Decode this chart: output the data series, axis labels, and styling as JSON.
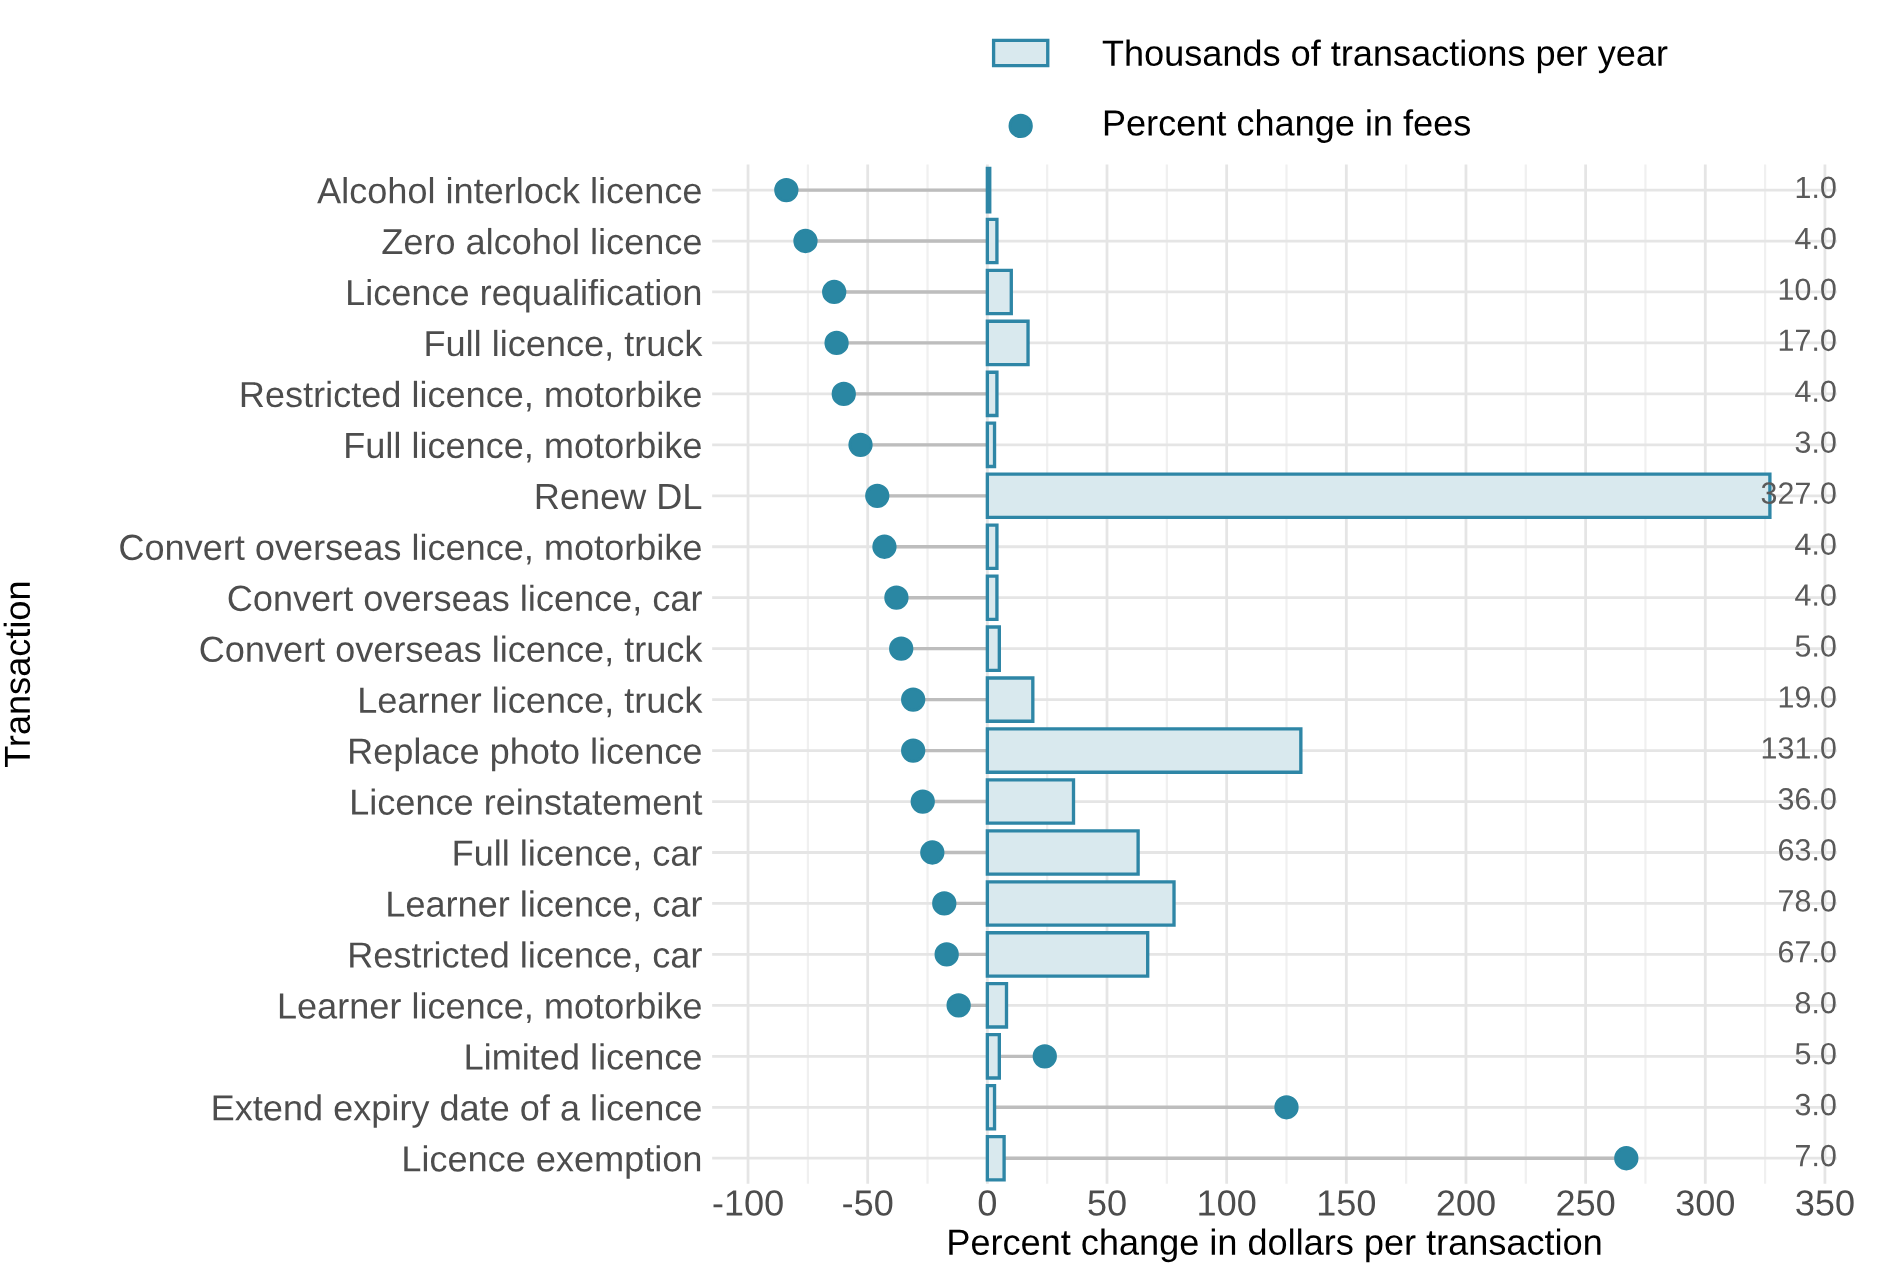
{
  "chart_data": {
    "type": "bar",
    "orientation": "horizontal",
    "xlabel": "Percent change in dollars per transaction",
    "ylabel": "Transaction",
    "categories": [
      "Alcohol interlock licence",
      "Zero alcohol licence",
      "Licence requalification",
      "Full licence, truck",
      "Restricted licence, motorbike",
      "Full licence, motorbike",
      "Renew DL",
      "Convert overseas licence, motorbike",
      "Convert overseas licence, car",
      "Convert overseas licence, truck",
      "Learner licence, truck",
      "Replace photo licence",
      "Licence reinstatement",
      "Full licence, car",
      "Learner licence, car",
      "Restricted licence, car",
      "Learner licence, motorbike",
      "Limited licence",
      "Extend expiry date of a licence",
      "Licence exemption"
    ],
    "series": [
      {
        "name": "Thousands of transactions per year",
        "color": "#2e86a6",
        "values": [
          1,
          4,
          10,
          17,
          4,
          3,
          327,
          4,
          4,
          5,
          19,
          131,
          36,
          63,
          78,
          67,
          8,
          5,
          3,
          7
        ],
        "value_labels": [
          "1.0",
          "4.0",
          "10.0",
          "17.0",
          "4.0",
          "3.0",
          "327.0",
          "4.0",
          "4.0",
          "5.0",
          "19.0",
          "131.0",
          "36.0",
          "63.0",
          "78.0",
          "67.0",
          "8.0",
          "5.0",
          "3.0",
          "7.0"
        ]
      },
      {
        "name": "Percent change in fees",
        "type": "lollipop",
        "color": "#2a87a3",
        "values": [
          -84,
          -76,
          -64,
          -63,
          -60,
          -53,
          -46,
          -43,
          -38,
          -36,
          -31,
          -31,
          -27,
          -23,
          -18,
          -17,
          -12,
          24,
          125,
          267
        ]
      }
    ],
    "xlim": [
      -115,
      355
    ],
    "xticks": [
      -100,
      -50,
      0,
      50,
      100,
      150,
      200,
      250,
      300,
      350
    ],
    "grid": true,
    "legend": "top"
  }
}
